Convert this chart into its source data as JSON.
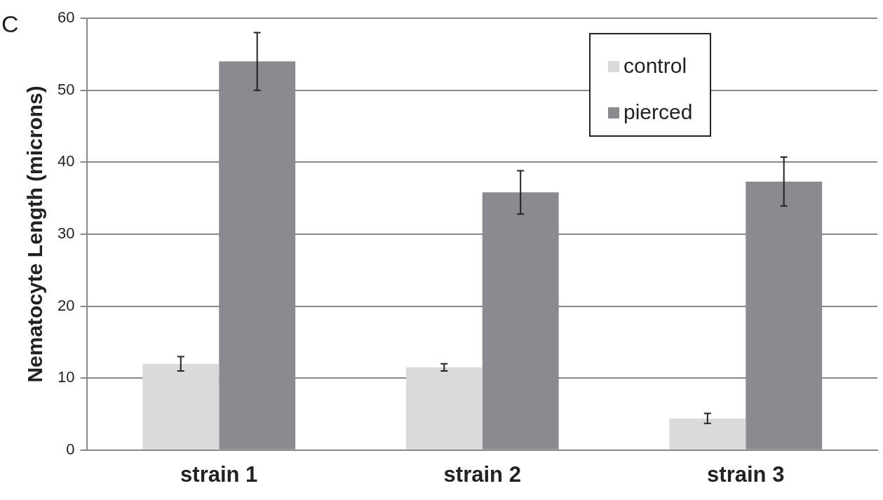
{
  "chart_data": {
    "type": "bar",
    "ylabel": "Nematocyte Length (microns)",
    "annotations": [
      "C"
    ],
    "categories": [
      "strain 1",
      "strain 2",
      "strain 3"
    ],
    "series": [
      {
        "name": "control",
        "color": "#d9dadb",
        "values": [
          12.0,
          11.5,
          4.4
        ],
        "errors": [
          1.0,
          0.5,
          0.7
        ]
      },
      {
        "name": "pierced",
        "color": "#8a8b8e",
        "values": [
          54.0,
          35.8,
          37.3
        ],
        "errors": [
          4.0,
          3.0,
          3.4
        ]
      }
    ],
    "ylim": [
      0,
      60
    ],
    "yticks": [
      0,
      10,
      20,
      30,
      40,
      50,
      60
    ],
    "grid": "y",
    "legend": "top right"
  }
}
